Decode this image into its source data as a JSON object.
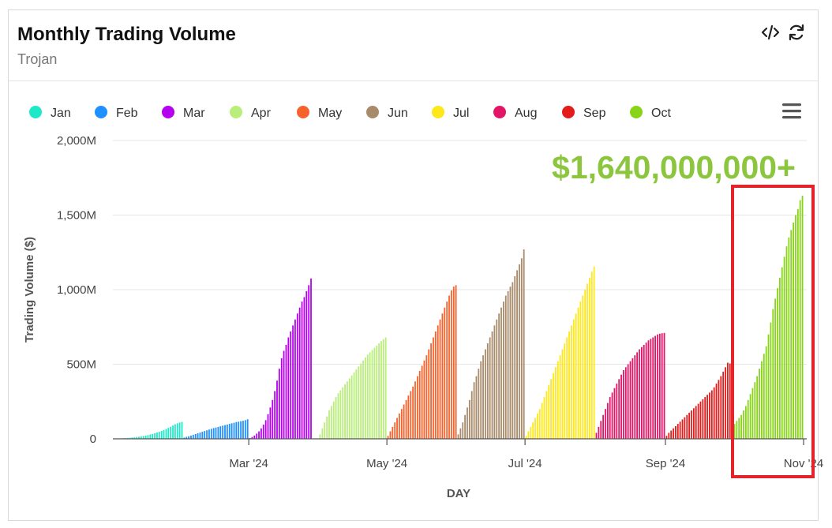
{
  "header": {
    "title": "Monthly Trading Volume",
    "subtitle": "Trojan",
    "icons": [
      "embed-code-icon",
      "refresh-icon"
    ]
  },
  "menu_icon": "hamburger-menu-icon",
  "annotation": {
    "text": "$1,640,000,000+",
    "color": "#8cc63f",
    "highlight_color": "#e3242b"
  },
  "chart_data": {
    "type": "bar",
    "title": "Monthly Trading Volume",
    "subtitle": "Trojan",
    "xlabel": "DAY",
    "ylabel": "Trading Volume ($)",
    "ylim": [
      0,
      2000
    ],
    "y_unit": "M",
    "yticks": [
      {
        "value": 0,
        "label": "0"
      },
      {
        "value": 500,
        "label": "500M"
      },
      {
        "value": 1000,
        "label": "1,000M"
      },
      {
        "value": 1500,
        "label": "1,500M"
      },
      {
        "value": 2000,
        "label": "2,000M"
      }
    ],
    "xlim": [
      "2024-01-01",
      "2024-11-01"
    ],
    "xticks": [
      {
        "date": "2024-03-01",
        "label": "Mar '24"
      },
      {
        "date": "2024-05-01",
        "label": "May '24"
      },
      {
        "date": "2024-07-01",
        "label": "Jul '24"
      },
      {
        "date": "2024-09-01",
        "label": "Sep '24"
      },
      {
        "date": "2024-11-01",
        "label": "Nov '24"
      }
    ],
    "grid": true,
    "legend_position": "top",
    "value_description": "cumulative daily trading volume within each month (millions $)",
    "series": [
      {
        "name": "Jan",
        "color": "#1de9c8",
        "start": "2024-01-01",
        "values": [
          0,
          1,
          2,
          3,
          4,
          5,
          6,
          7,
          9,
          10,
          12,
          14,
          16,
          19,
          22,
          25,
          29,
          33,
          37,
          42,
          47,
          53,
          59,
          66,
          73,
          81,
          89,
          97,
          104,
          109,
          113
        ]
      },
      {
        "name": "Feb",
        "color": "#1e90ff",
        "start": "2024-02-01",
        "values": [
          8,
          13,
          17,
          22,
          27,
          32,
          37,
          42,
          47,
          52,
          57,
          62,
          67,
          72,
          76,
          80,
          84,
          88,
          92,
          96,
          100,
          104,
          108,
          112,
          115,
          118,
          121,
          125,
          131
        ]
      },
      {
        "name": "Mar",
        "color": "#b600f0",
        "start": "2024-03-01",
        "values": [
          5,
          12,
          22,
          35,
          50,
          70,
          95,
          125,
          165,
          210,
          260,
          320,
          390,
          470,
          540,
          590,
          630,
          680,
          720,
          760,
          800,
          840,
          880,
          920,
          950,
          990,
          1030,
          1075
        ]
      },
      {
        "name": "Apr",
        "color": "#b9ee7a",
        "start": "2024-04-01",
        "values": [
          30,
          70,
          110,
          150,
          190,
          220,
          250,
          280,
          305,
          325,
          345,
          365,
          385,
          405,
          425,
          445,
          465,
          485,
          505,
          525,
          545,
          565,
          580,
          595,
          610,
          625,
          640,
          655,
          668,
          680
        ]
      },
      {
        "name": "May",
        "color": "#f7622c",
        "start": "2024-05-01",
        "values": [
          20,
          50,
          80,
          110,
          140,
          170,
          200,
          230,
          260,
          290,
          320,
          350,
          385,
          420,
          455,
          490,
          525,
          560,
          600,
          640,
          680,
          720,
          760,
          800,
          840,
          880,
          920,
          960,
          995,
          1020,
          1030
        ]
      },
      {
        "name": "Jun",
        "color": "#a88b6b",
        "start": "2024-06-01",
        "values": [
          30,
          70,
          110,
          160,
          210,
          260,
          320,
          380,
          420,
          470,
          520,
          560,
          600,
          640,
          680,
          720,
          760,
          800,
          840,
          880,
          920,
          960,
          990,
          1020,
          1050,
          1090,
          1130,
          1170,
          1210,
          1270
        ]
      },
      {
        "name": "Jul",
        "color": "#fee71a",
        "start": "2024-07-01",
        "values": [
          20,
          50,
          80,
          110,
          140,
          170,
          200,
          240,
          280,
          320,
          360,
          400,
          440,
          480,
          520,
          560,
          600,
          640,
          680,
          720,
          760,
          800,
          840,
          880,
          920,
          960,
          1000,
          1040,
          1080,
          1120,
          1155
        ]
      },
      {
        "name": "Aug",
        "color": "#e31567",
        "start": "2024-08-01",
        "values": [
          40,
          80,
          120,
          160,
          200,
          240,
          280,
          310,
          340,
          370,
          400,
          430,
          460,
          480,
          500,
          520,
          540,
          560,
          580,
          600,
          615,
          630,
          645,
          660,
          670,
          680,
          690,
          700,
          705,
          708,
          710
        ]
      },
      {
        "name": "Sep",
        "color": "#e31b1b",
        "start": "2024-09-01",
        "values": [
          20,
          40,
          55,
          70,
          85,
          100,
          115,
          130,
          145,
          160,
          175,
          190,
          205,
          220,
          235,
          250,
          265,
          280,
          295,
          310,
          325,
          345,
          370,
          395,
          420,
          450,
          480,
          510,
          505,
          510
        ]
      },
      {
        "name": "Oct",
        "color": "#88d418",
        "start": "2024-10-01",
        "values": [
          100,
          120,
          140,
          160,
          190,
          220,
          260,
          300,
          340,
          380,
          420,
          470,
          520,
          570,
          620,
          700,
          780,
          870,
          940,
          1010,
          1080,
          1150,
          1220,
          1290,
          1350,
          1400,
          1450,
          1500,
          1540,
          1600,
          1630
        ]
      }
    ]
  }
}
